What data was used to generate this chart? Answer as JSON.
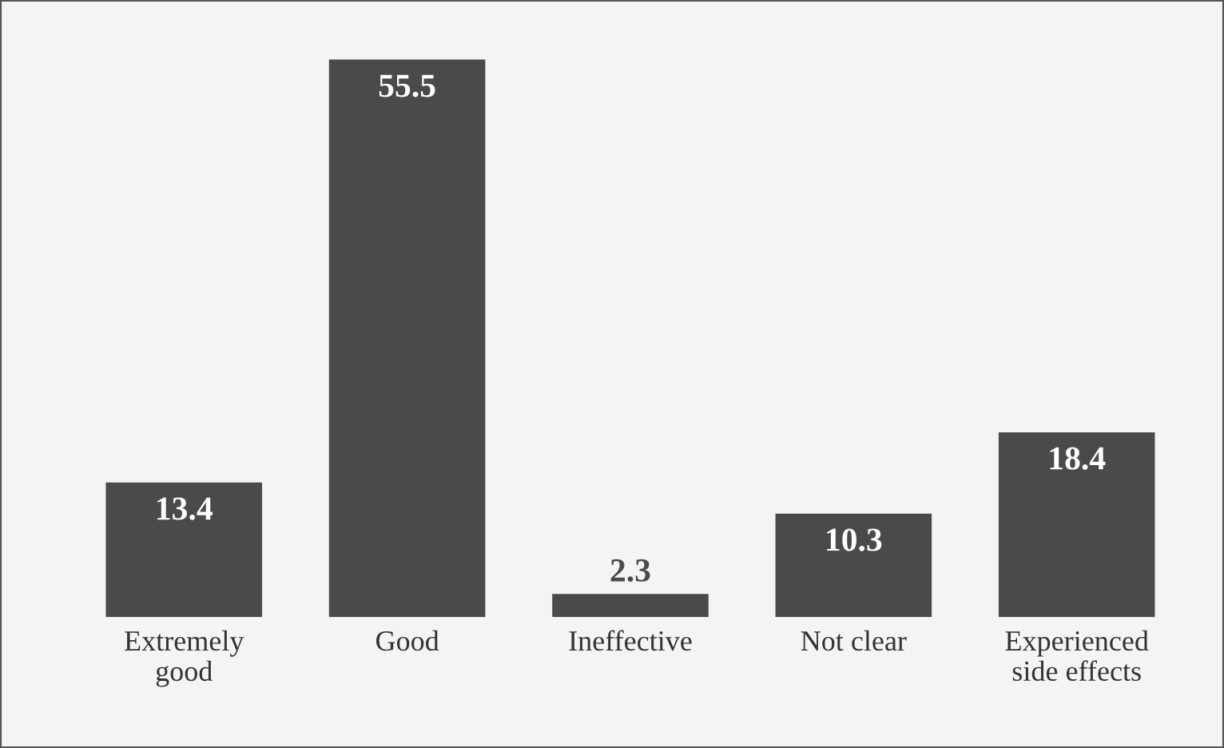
{
  "chart_data": {
    "type": "bar",
    "categories": [
      "Extremely good",
      "Good",
      "Ineffective",
      "Not clear",
      "Experienced side effects"
    ],
    "values": [
      13.4,
      55.5,
      2.3,
      10.3,
      18.4
    ],
    "color": "#4a4a4a",
    "data_labels": true,
    "grid": false,
    "legend": false
  }
}
